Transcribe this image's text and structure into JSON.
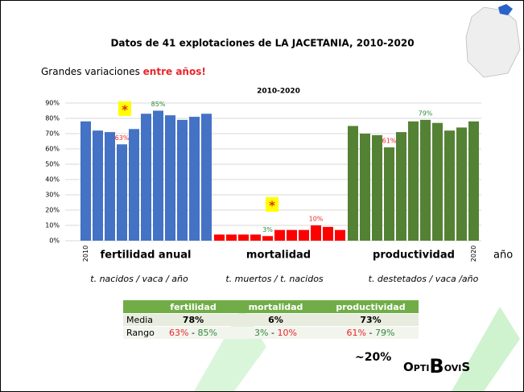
{
  "title": "Datos de 41 explotaciones de LA JACETANIA, 2010-2020",
  "subtitle": "Grandes variaciones ",
  "subtitle_highlight": "entre años!",
  "chart_data": {
    "type": "bar",
    "title": "2010-2020",
    "x_label": "año",
    "highlight_mark": "*",
    "categories": [
      "2010",
      null,
      null,
      null,
      null,
      null,
      null,
      null,
      null,
      null,
      "2020"
    ],
    "ylim": [
      0,
      90
    ],
    "yticks": [
      {
        "value": 0,
        "label": "0%"
      },
      {
        "value": 10,
        "label": "10%"
      },
      {
        "value": 20,
        "label": "20%"
      },
      {
        "value": 30,
        "label": "30%"
      },
      {
        "value": 40,
        "label": "40%"
      },
      {
        "value": 50,
        "label": "50%"
      },
      {
        "value": 60,
        "label": "60%"
      },
      {
        "value": 70,
        "label": "70%"
      },
      {
        "value": 80,
        "label": "80%"
      },
      {
        "value": 90,
        "label": "90%"
      }
    ],
    "grid": true,
    "series": [
      {
        "name": "fertilidad anual",
        "unit": "t. nacidos / vaca / año",
        "color": "#4472c4",
        "values": [
          78,
          72,
          71,
          63,
          73,
          83,
          85,
          82,
          79,
          81,
          83
        ],
        "value_labels": [
          null,
          null,
          null,
          "63%",
          null,
          null,
          "85%",
          null,
          null,
          null,
          null
        ],
        "value_label_colors": [
          null,
          null,
          null,
          "#e8262a",
          null,
          null,
          "#2e8b3a",
          null,
          null,
          null,
          null
        ]
      },
      {
        "name": "mortalidad",
        "unit": "t. muertos / t. nacidos",
        "color": "#ff0000",
        "values": [
          4,
          4,
          4,
          4,
          3,
          7,
          7,
          7,
          10,
          9,
          7
        ],
        "value_labels": [
          null,
          null,
          null,
          null,
          "3%",
          null,
          null,
          null,
          "10%",
          null,
          null
        ],
        "value_label_colors": [
          null,
          null,
          null,
          null,
          "#2e8b3a",
          null,
          null,
          null,
          "#e8262a",
          null,
          null
        ]
      },
      {
        "name": "productividad",
        "unit": "t. destetados / vaca /año",
        "color": "#548235",
        "values": [
          75,
          70,
          69,
          61,
          71,
          78,
          79,
          77,
          72,
          74,
          78
        ],
        "value_labels": [
          null,
          null,
          null,
          "61%",
          null,
          null,
          "79%",
          null,
          null,
          null,
          null
        ],
        "value_label_colors": [
          null,
          null,
          null,
          "#e8262a",
          null,
          null,
          "#2e8b3a",
          null,
          null,
          null,
          null
        ]
      }
    ]
  },
  "table": {
    "columns": [
      "fertilidad",
      "mortalidad",
      "productividad"
    ],
    "rows": [
      {
        "label": "Media",
        "cells": [
          "78%",
          "6%",
          "73%"
        ]
      },
      {
        "label": "Rango",
        "cells": [
          [
            "63%",
            "-",
            "85%"
          ],
          [
            "3%",
            "-",
            "10%"
          ],
          [
            "61%",
            "-",
            "79%"
          ]
        ]
      }
    ]
  },
  "note": "~20%",
  "logo": {
    "a": "Opti",
    "b": "B",
    "c": "oviS"
  }
}
